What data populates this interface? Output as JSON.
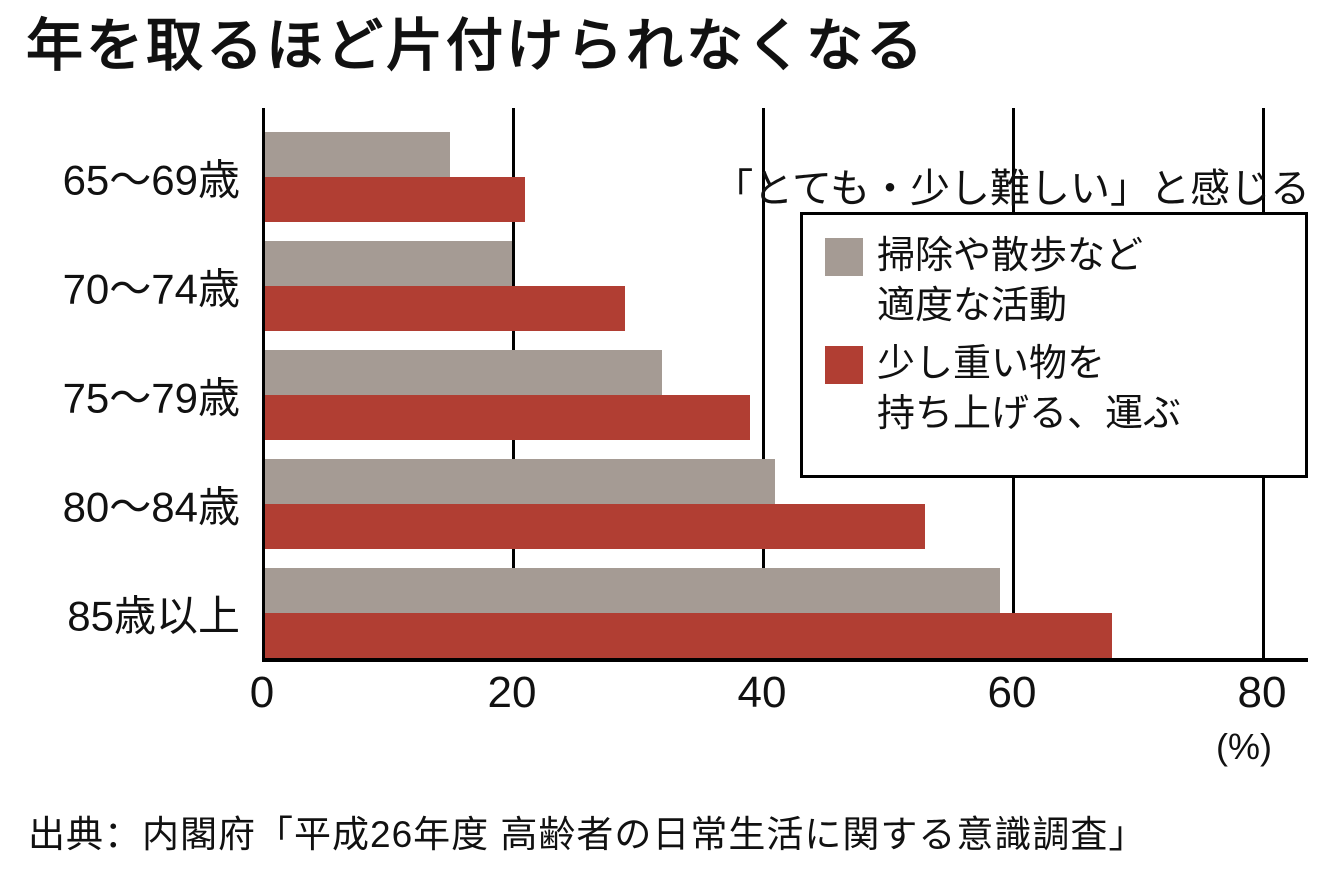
{
  "page": {
    "title": "年を取るほど片付けられなくなる",
    "annotation": "「とても・少し難しい」と感じる",
    "unit_label": "(%)",
    "source": "出典：内閣府「平成26年度 高齢者の日常生活に関する意識調査」"
  },
  "legend": {
    "items": [
      {
        "label_line1": "掃除や散歩など",
        "label_line2": "適度な活動",
        "color": "#a59b94"
      },
      {
        "label_line1": "少し重い物を",
        "label_line2": "持ち上げる、運ぶ",
        "color": "#b13e33"
      }
    ]
  },
  "chart_data": {
    "type": "bar",
    "orientation": "horizontal",
    "title": "年を取るほど片付けられなくなる",
    "subtitle": "「とても・少し難しい」と感じる",
    "categories": [
      "65〜69歳",
      "70〜74歳",
      "75〜79歳",
      "80〜84歳",
      "85歳以上"
    ],
    "series": [
      {
        "name": "掃除や散歩など適度な活動",
        "color": "#a59b94",
        "values": [
          15,
          20,
          32,
          41,
          59
        ]
      },
      {
        "name": "少し重い物を持ち上げる、運ぶ",
        "color": "#b13e33",
        "values": [
          21,
          29,
          39,
          53,
          68
        ]
      }
    ],
    "xlim": [
      0,
      80
    ],
    "xticks": [
      0,
      20,
      40,
      60,
      80
    ],
    "unit": "(%)",
    "grid": true,
    "legend_position": "upper right",
    "source": "出典：内閣府「平成26年度 高齢者の日常生活に関する意識調査」"
  }
}
